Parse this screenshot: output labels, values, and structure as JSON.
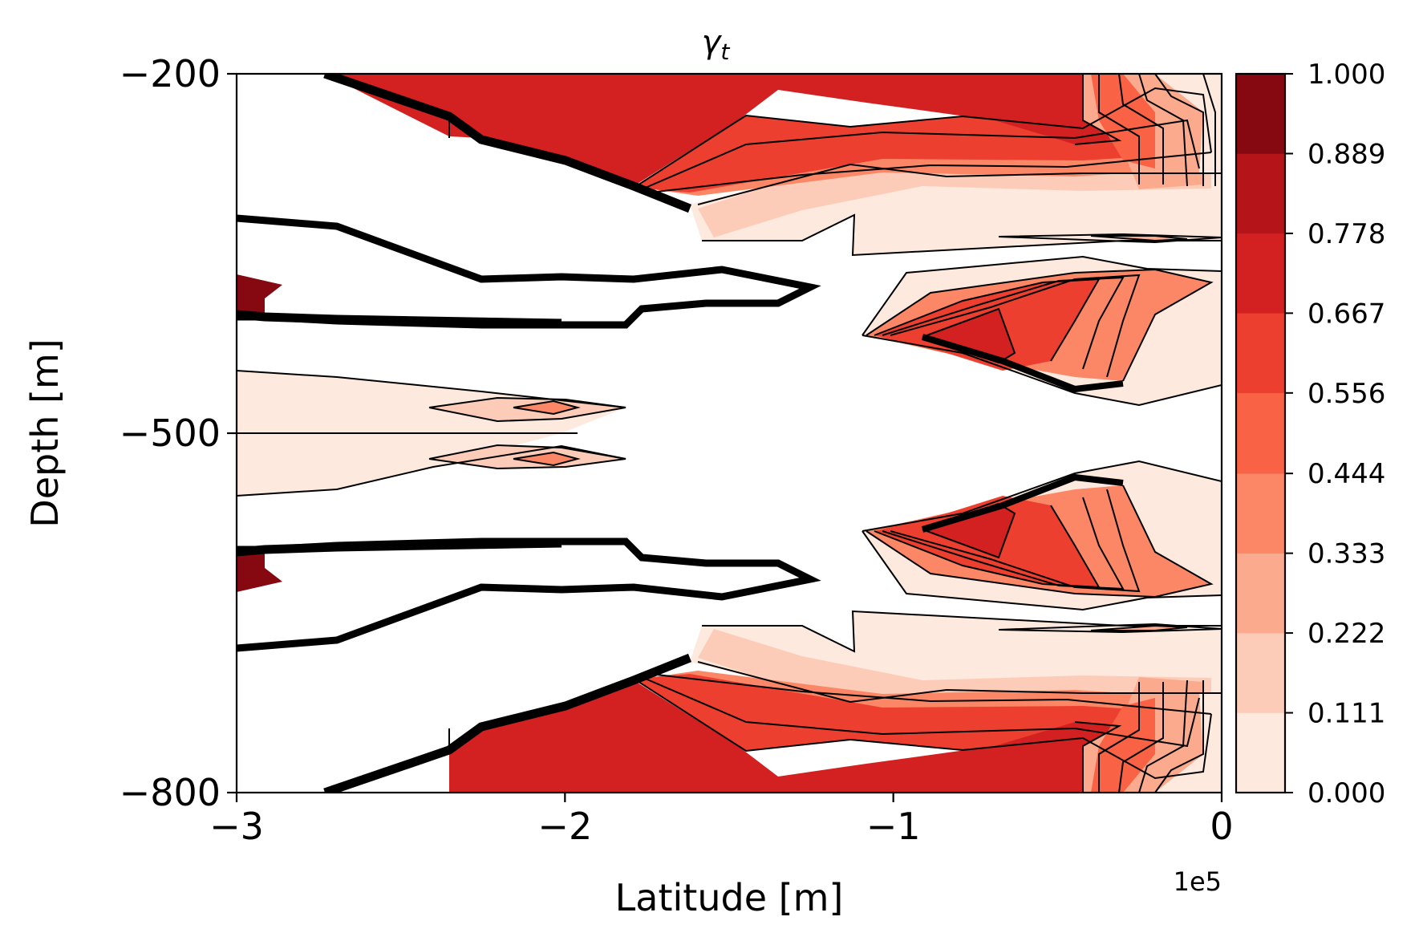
{
  "chart_data": {
    "type": "heatmap",
    "subtype": "filled-contour",
    "title": "γt",
    "title_main": "γ",
    "title_sub": "t",
    "xlabel": "Latitude [m]",
    "ylabel": "Depth [m]",
    "x_offset_label": "1e5",
    "xlim": [
      -3,
      0
    ],
    "ylim": [
      -800,
      -200
    ],
    "x_ticks": [
      -3,
      -2,
      -1,
      0
    ],
    "x_tick_labels": [
      "−3",
      "−2",
      "−1",
      "0"
    ],
    "y_ticks": [
      -200,
      -500,
      -800
    ],
    "y_tick_labels": [
      "−200",
      "−500",
      "−800"
    ],
    "grid": false,
    "colormap": "Reds",
    "colorbar": {
      "levels": [
        0.0,
        0.111,
        0.222,
        0.333,
        0.444,
        0.556,
        0.667,
        0.778,
        0.889,
        1.0
      ],
      "labels": [
        "0.000",
        "0.111",
        "0.222",
        "0.333",
        "0.444",
        "0.556",
        "0.667",
        "0.778",
        "0.889",
        "1.000"
      ],
      "colors": [
        "#fee9df",
        "#fdccb8",
        "#fcaa8e",
        "#fc8767",
        "#f96245",
        "#ed3f2f",
        "#d32020",
        "#b51419",
        "#860811"
      ]
    },
    "regions": [
      {
        "name": "top-shelf-band",
        "level": 6,
        "x": [
          -2.85,
          -1.5,
          -0.2
        ],
        "y": [
          -200,
          -290,
          -200
        ]
      },
      {
        "name": "bottom-shelf-band",
        "level": 6,
        "x": [
          -2.85,
          -1.5,
          -0.2
        ],
        "y": [
          -800,
          -710,
          -800
        ]
      },
      {
        "name": "mid-upper-right-core",
        "level": 6,
        "x": [
          -1.1,
          -0.2
        ],
        "y": [
          -410,
          -320
        ]
      },
      {
        "name": "mid-lower-right-core",
        "level": 6,
        "x": [
          -1.1,
          -0.2
        ],
        "y": [
          -680,
          -590
        ]
      },
      {
        "name": "left-edge-spots",
        "level": 8,
        "x": [
          -3.0,
          -2.9
        ],
        "y": [
          -390,
          -610
        ]
      },
      {
        "name": "left-mid-tongues",
        "level": 3,
        "x": [
          -3.0,
          -1.8
        ],
        "y": [
          -440,
          -560
        ]
      }
    ]
  }
}
